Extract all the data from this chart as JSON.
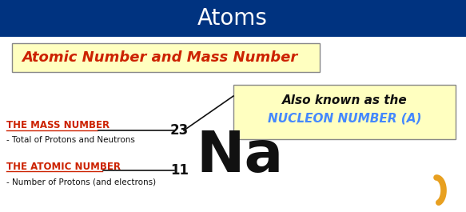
{
  "bg_color": "#ffffff",
  "header_bg": "#003380",
  "header_text": "Atoms",
  "header_text_color": "#ffffff",
  "subtitle_box_bg": "#ffffc0",
  "subtitle_box_edge": "#888888",
  "subtitle_text": "Atomic Number and Mass Number",
  "subtitle_text_color": "#cc2200",
  "nucleon_box_bg": "#ffffc0",
  "nucleon_box_edge": "#888888",
  "nucleon_line1": "Also known as the",
  "nucleon_line2": "NUCLEON NUMBER (A)",
  "nucleon_line1_color": "#111111",
  "nucleon_line2_color": "#4488ff",
  "mass_label": "THE MASS NUMBER",
  "mass_label_color": "#cc2200",
  "mass_desc": "- Total of Protons and Neutrons",
  "mass_desc_color": "#111111",
  "atomic_label": "THE ATOMIC NUMBER",
  "atomic_label_color": "#cc2200",
  "atomic_desc": "- Number of Protons (and electrons)",
  "atomic_desc_color": "#111111",
  "element_symbol": "Na",
  "mass_number": "23",
  "atomic_number": "11",
  "symbol_color": "#111111",
  "number_color": "#111111",
  "line_color": "#111111",
  "curl_color": "#e8a020"
}
